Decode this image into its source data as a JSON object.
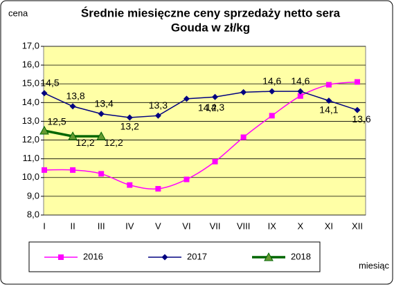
{
  "chart_data": {
    "type": "line",
    "title": [
      "Średnie miesięczne ceny sprzedaży netto sera",
      "Gouda w zł/kg"
    ],
    "y_label": "cena",
    "x_label": "miesiąc",
    "categories": [
      "I",
      "II",
      "III",
      "IV",
      "V",
      "VI",
      "VII",
      "VIII",
      "IX",
      "X",
      "XI",
      "XII"
    ],
    "ylim": [
      8,
      17
    ],
    "yticks": [
      {
        "value": 8,
        "label": "8,0"
      },
      {
        "value": 9,
        "label": "9,0"
      },
      {
        "value": 10,
        "label": "10,0"
      },
      {
        "value": 11,
        "label": "11,0"
      },
      {
        "value": 12,
        "label": "12,0"
      },
      {
        "value": 13,
        "label": "13,0"
      },
      {
        "value": 14,
        "label": "14,0"
      },
      {
        "value": 15,
        "label": "15,0"
      },
      {
        "value": 16,
        "label": "16,0"
      },
      {
        "value": 17,
        "label": "17,0"
      }
    ],
    "grid": true,
    "series": [
      {
        "name": "2016",
        "color": "#ff00ff",
        "marker": "square",
        "smooth": true,
        "values": [
          10.4,
          10.4,
          10.2,
          9.6,
          9.4,
          9.9,
          10.85,
          12.15,
          13.3,
          14.35,
          14.95,
          15.1
        ]
      },
      {
        "name": "2017",
        "color": "#000080",
        "marker": "diamond",
        "smooth": false,
        "values": [
          14.5,
          13.8,
          13.4,
          13.2,
          13.3,
          14.2,
          14.3,
          14.55,
          14.6,
          14.6,
          14.1,
          13.6
        ],
        "value_labels": [
          "14,5",
          "13,8",
          "13,4",
          "13,2",
          "13,3",
          "14,2",
          "14,3",
          null,
          "14,6",
          "14,6",
          "14,1",
          "13,6"
        ]
      },
      {
        "name": "2018",
        "color": "#006600",
        "marker": "triangle",
        "smooth": false,
        "values": [
          12.5,
          12.2,
          12.2,
          null,
          null,
          null,
          null,
          null,
          null,
          null,
          null,
          null
        ],
        "value_labels": [
          "12,5",
          "12,2",
          "12,2",
          null,
          null,
          null,
          null,
          null,
          null,
          null,
          null,
          null
        ]
      }
    ]
  }
}
